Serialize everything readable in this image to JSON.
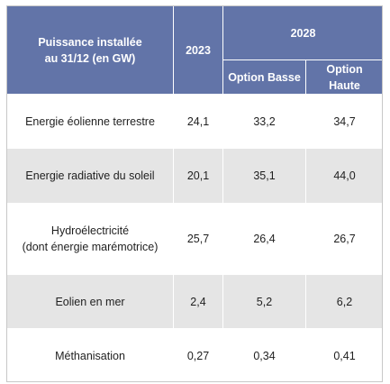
{
  "table": {
    "header": {
      "label_line1": "Puissance installée",
      "label_line2": "au 31/12 (en GW)",
      "year_current": "2023",
      "year_target": "2028",
      "option_low": "Option Basse",
      "option_high": "Option Haute"
    },
    "rows": [
      {
        "label_line1": "Energie éolienne terrestre",
        "label_line2": "",
        "v2023": "24,1",
        "low": "33,2",
        "high": "34,7"
      },
      {
        "label_line1": "Energie radiative du soleil",
        "label_line2": "",
        "v2023": "20,1",
        "low": "35,1",
        "high": "44,0"
      },
      {
        "label_line1": "Hydroélectricité",
        "label_line2": "(dont énergie marémotrice)",
        "v2023": "25,7",
        "low": "26,4",
        "high": "26,7"
      },
      {
        "label_line1": "Eolien en mer",
        "label_line2": "",
        "v2023": "2,4",
        "low": "5,2",
        "high": "6,2"
      },
      {
        "label_line1": "Méthanisation",
        "label_line2": "",
        "v2023": "0,27",
        "low": "0,34",
        "high": "0,41"
      }
    ]
  },
  "colors": {
    "header_bg": "#6274a8",
    "header_text": "#ffffff",
    "band_dark": "#e5e5e5",
    "band_light": "#ffffff"
  }
}
